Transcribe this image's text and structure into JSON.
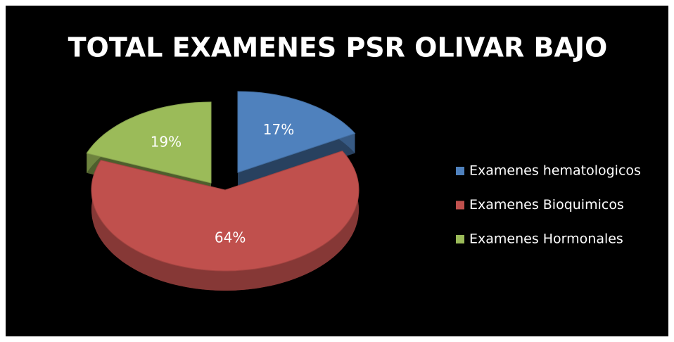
{
  "chart_data": {
    "type": "pie",
    "title": "TOTAL EXAMENES PSR OLIVAR BAJO",
    "categories": [
      "Examenes hematologicos",
      "Examenes Bioquimicos",
      "Examenes Hormonales"
    ],
    "values": [
      17,
      64,
      19
    ],
    "value_labels": [
      "17%",
      "64%",
      "19%"
    ],
    "colors": [
      "#4f81bd",
      "#c0504d",
      "#9bbb59"
    ],
    "legend": "right"
  }
}
